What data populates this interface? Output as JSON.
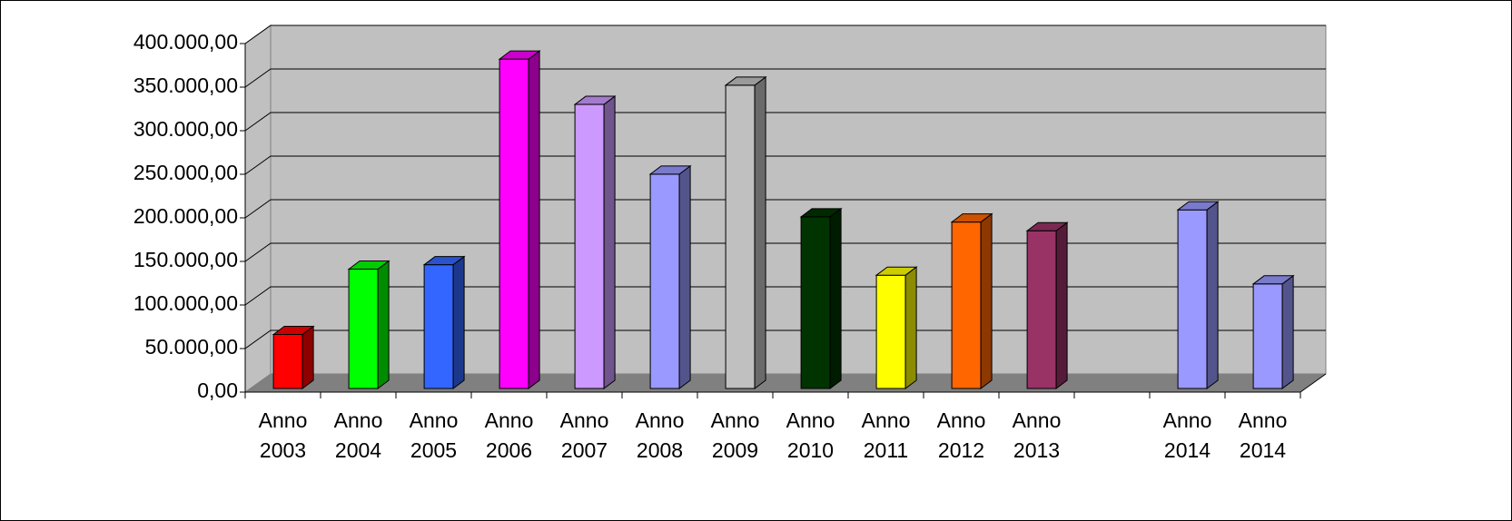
{
  "chart_data": {
    "type": "bar3d",
    "categories": [
      "Anno 2003",
      "Anno 2004",
      "Anno 2005",
      "Anno 2006",
      "Anno 2007",
      "Anno 2008",
      "Anno 2009",
      "Anno 2010",
      "Anno 2011",
      "Anno 2012",
      "Anno 2013",
      null,
      "Anno 2014",
      "Anno 2014"
    ],
    "values": [
      62000,
      137000,
      142000,
      378000,
      326000,
      246000,
      348000,
      197000,
      130000,
      191000,
      181000,
      null,
      205000,
      120000
    ],
    "colors": [
      "#ff0000",
      "#00ff00",
      "#3366ff",
      "#ff00ff",
      "#cc99ff",
      "#9999ff",
      "#c0c0c0",
      "#003300",
      "#ffff00",
      "#ff6600",
      "#993366",
      null,
      "#9999ff",
      "#9999ff"
    ],
    "ylim": [
      0,
      400000
    ],
    "yticks": [
      {
        "value": 0,
        "label": "0,00"
      },
      {
        "value": 50000,
        "label": "50.000,00"
      },
      {
        "value": 100000,
        "label": "100.000,00"
      },
      {
        "value": 150000,
        "label": "150.000,00"
      },
      {
        "value": 200000,
        "label": "200.000,00"
      },
      {
        "value": 250000,
        "label": "250.000,00"
      },
      {
        "value": 300000,
        "label": "300.000,00"
      },
      {
        "value": 350000,
        "label": "350.000,00"
      },
      {
        "value": 400000,
        "label": "400.000,00"
      }
    ],
    "grid": true
  }
}
